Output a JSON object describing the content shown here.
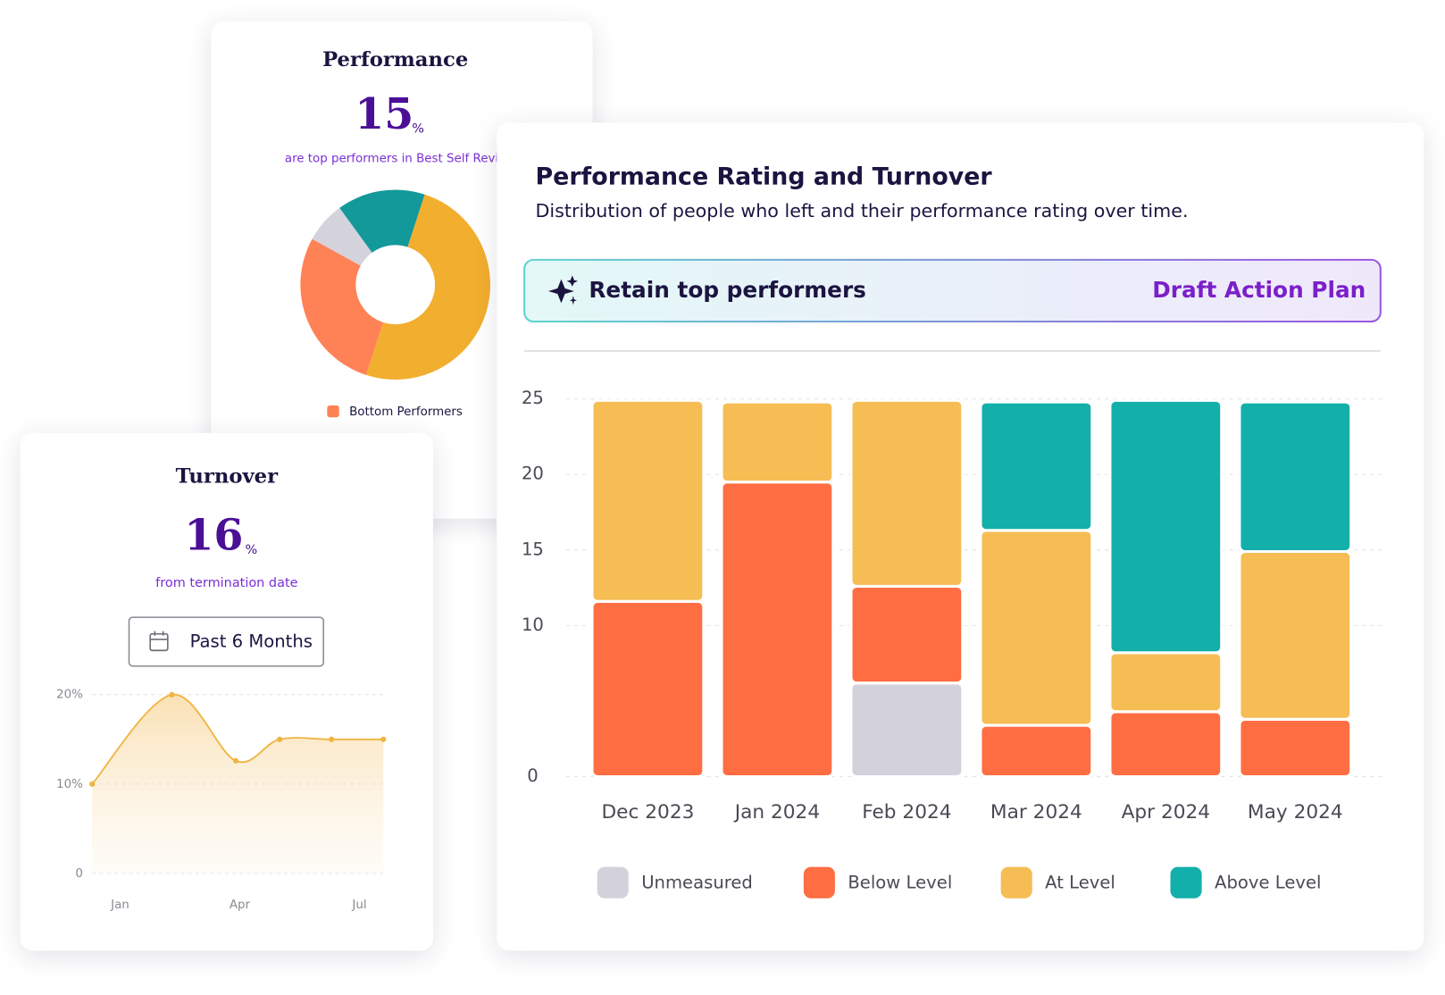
{
  "chart_data": [
    {
      "type": "pie",
      "title": "Performance",
      "headline": 15,
      "headline_unit": "%",
      "caption": "are top performers in Best Self Revie",
      "categories": [
        null,
        "Bottom Performers",
        null,
        null
      ],
      "values": [
        50,
        28,
        7,
        15
      ],
      "colors": [
        "#f2ae2e",
        "#ff8257",
        "#d4d3dc",
        "#13999a"
      ],
      "donut": true
    },
    {
      "type": "line",
      "title": "Turnover",
      "headline": 16,
      "headline_unit": "%",
      "caption": "from termination date",
      "filter": "Past 6 Months",
      "x": [
        0.3,
        2.3,
        3.9,
        5,
        6.3,
        7.6
      ],
      "values": [
        10,
        20,
        12.6,
        15,
        15,
        15
      ],
      "color": "#f0b440",
      "area": true,
      "xlim": [
        0.3,
        7.6
      ],
      "xticks": [
        {
          "value": 1,
          "label": "Jan"
        },
        {
          "value": 4,
          "label": "Apr"
        },
        {
          "value": 7,
          "label": "Jul"
        }
      ],
      "ylim": [
        0,
        20
      ],
      "yticks": [
        0,
        {
          "value": 10,
          "label": "10%"
        },
        {
          "value": 20,
          "label": "20%"
        }
      ],
      "grid": true
    },
    {
      "type": "stacked_bar",
      "title": "Performance Rating and Turnover",
      "subtitle": "Distribution of people who left and their performance rating over time.",
      "banner": {
        "text": "Retain top performers",
        "action": "Draft Action Plan"
      },
      "categories": [
        "Dec 2023",
        "Jan 2024",
        "Feb 2024",
        "Mar 2024",
        "Apr 2024",
        "May 2024"
      ],
      "series": [
        {
          "name": "Unmeasured",
          "color": "#d3d2dc",
          "values": [
            0,
            0,
            6.2,
            0,
            0,
            0
          ]
        },
        {
          "name": "Below Level",
          "color": "#ff6d42",
          "values": [
            11.6,
            19.5,
            6.4,
            3.4,
            4.3,
            3.8
          ]
        },
        {
          "name": "At Level",
          "color": "#f5bd54",
          "values": [
            13.3,
            5.3,
            12.3,
            12.9,
            3.9,
            11.1
          ]
        },
        {
          "name": "Above Level",
          "color": "#13afaa",
          "values": [
            0,
            0,
            0,
            8.5,
            16.7,
            9.9
          ]
        }
      ],
      "ylim": [
        0,
        25
      ],
      "yticks": [
        0,
        10,
        15,
        20,
        25
      ],
      "grid": true,
      "legend": "bottom"
    }
  ]
}
